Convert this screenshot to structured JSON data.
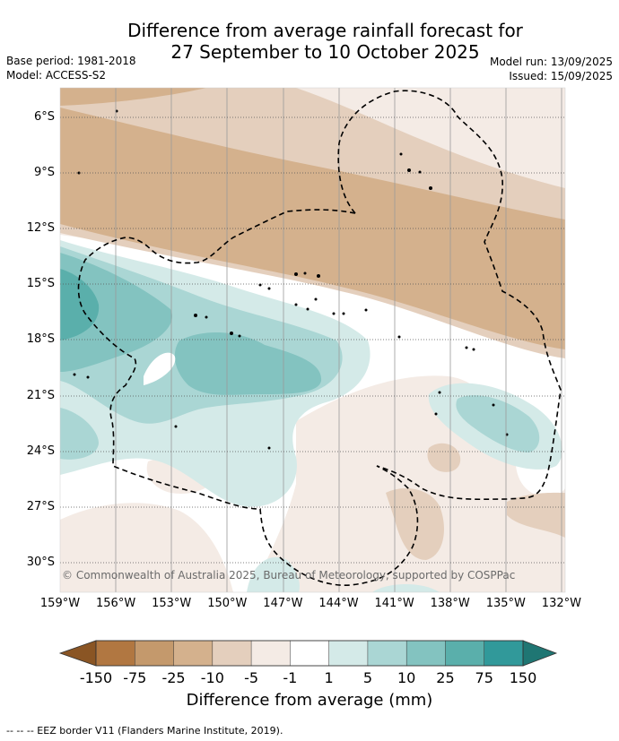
{
  "title_line1": "Difference from average rainfall forecast for",
  "title_line2": "27 September to 10 October 2025",
  "meta_left": {
    "base_period": "Base period: 1981-2018",
    "model": "Model: ACCESS-S2"
  },
  "meta_right": {
    "model_run": "Model run: 13/09/2025",
    "issued": "Issued: 15/09/2025"
  },
  "copyright": "© Commonwealth of Australia 2025, Bureau of Meteorology, supported by COSPPac",
  "lat_labels": [
    "6°S",
    "9°S",
    "12°S",
    "15°S",
    "18°S",
    "21°S",
    "24°S",
    "27°S",
    "30°S"
  ],
  "lon_labels": [
    "159°W",
    "156°W",
    "153°W",
    "150°W",
    "147°W",
    "144°W",
    "141°W",
    "138°W",
    "135°W",
    "132°W"
  ],
  "colorbar": {
    "labels": [
      "-150",
      "-75",
      "-25",
      "-10",
      "-5",
      "-1",
      "1",
      "5",
      "10",
      "25",
      "75",
      "150"
    ],
    "colors": [
      "#8a5524",
      "#b17741",
      "#c4996c",
      "#d4b18d",
      "#e4cfbd",
      "#f4ebe5",
      "#ffffff",
      "#d4eae8",
      "#aad6d4",
      "#83c3c0",
      "#5aafab",
      "#31999a",
      "#1f7673"
    ],
    "title": "Difference from average (mm)"
  },
  "footnote": "--  --  -- EEZ border V11 (Flanders Marine Institute, 2019)."
}
